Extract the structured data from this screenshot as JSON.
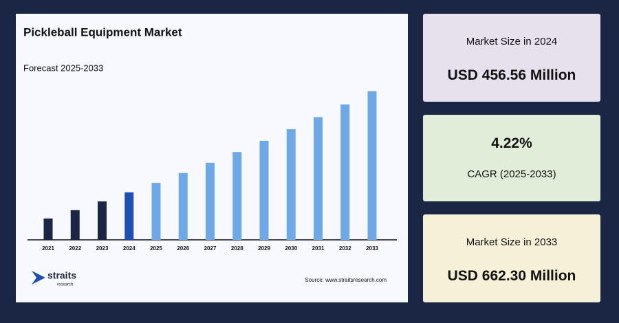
{
  "chart_data": {
    "type": "bar",
    "title": "Pickleball Equipment Market",
    "subtitle": "Forecast 2025-2033",
    "categories": [
      "2021",
      "2022",
      "2023",
      "2024",
      "2025",
      "2026",
      "2027",
      "2028",
      "2029",
      "2030",
      "2031",
      "2032",
      "2033"
    ],
    "values": [
      403.4,
      420.4,
      438.1,
      456.56,
      475.8,
      495.9,
      516.8,
      538.6,
      561.3,
      584.9,
      609.6,
      635.3,
      662.3
    ],
    "colors": [
      "#1b2544",
      "#1b2544",
      "#1b2544",
      "#1f4fb5",
      "#6fa8e6",
      "#6fa8e6",
      "#6fa8e6",
      "#6fa8e6",
      "#6fa8e6",
      "#6fa8e6",
      "#6fa8e6",
      "#6fa8e6",
      "#6fa8e6"
    ],
    "ylim": [
      360,
      680
    ]
  },
  "logo": {
    "name": "straits",
    "sub": "research"
  },
  "source": "Source: www.straitsresearch.com",
  "cards": [
    {
      "label": "Market Size in 2024",
      "value": "USD 456.56 Million"
    },
    {
      "label": "CAGR (2025-2033)",
      "value": "4.22%"
    },
    {
      "label": "Market Size in 2033",
      "value": "USD 662.30 Million"
    }
  ]
}
